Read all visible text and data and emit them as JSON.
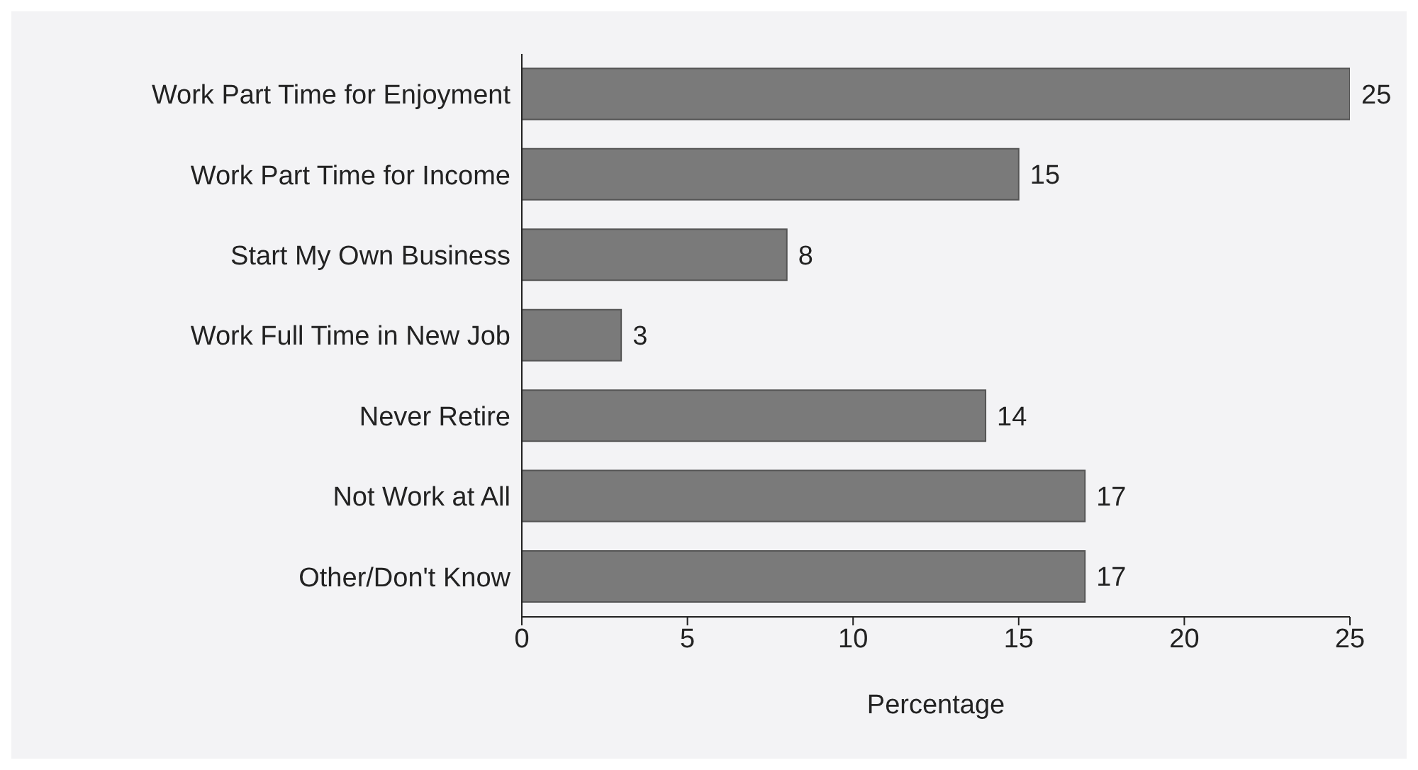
{
  "chart_data": {
    "type": "bar",
    "orientation": "horizontal",
    "xlabel": "Percentage",
    "categories": [
      "Work Part Time for Enjoyment",
      "Work Part Time for Income",
      "Start My Own Business",
      "Work Full Time in New Job",
      "Never Retire",
      "Not Work at All",
      "Other/Don't Know"
    ],
    "values": [
      25,
      15,
      8,
      3,
      14,
      17,
      17
    ],
    "color": "#7a7a7a",
    "data_labels": true,
    "xlim": [
      0,
      25
    ],
    "xticks": [
      0,
      5,
      10,
      15,
      20,
      25
    ]
  }
}
